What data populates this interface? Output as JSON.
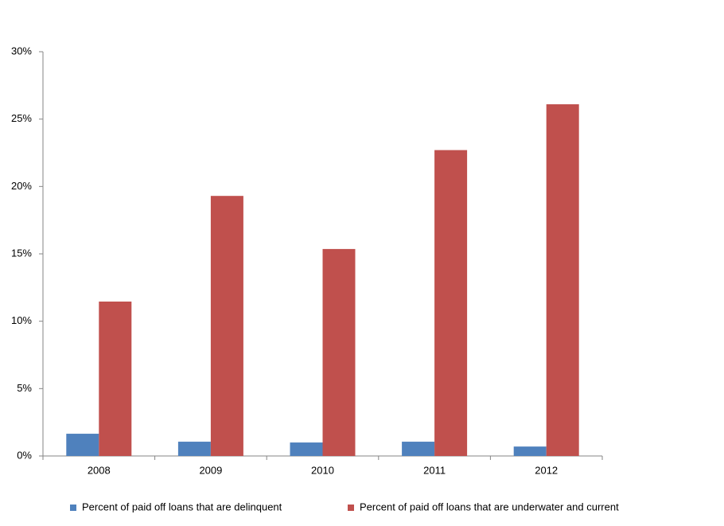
{
  "chart_data": {
    "type": "bar",
    "categories": [
      "2008",
      "2009",
      "2010",
      "2011",
      "2012"
    ],
    "series": [
      {
        "name": "Percent of paid off loans that are delinquent",
        "color": "#4f81bd",
        "values": [
          1.65,
          1.06,
          1.0,
          1.06,
          0.7
        ]
      },
      {
        "name": "Percent of paid off loans that are underwater and current",
        "color": "#c0504d",
        "values": [
          11.46,
          19.3,
          15.36,
          22.7,
          26.1
        ]
      }
    ],
    "ylim": [
      0,
      30
    ],
    "yticks": [
      {
        "value": 0,
        "label": "0%"
      },
      {
        "value": 5,
        "label": "5%"
      },
      {
        "value": 10,
        "label": "10%"
      },
      {
        "value": 15,
        "label": "15%"
      },
      {
        "value": 20,
        "label": "20%"
      },
      {
        "value": 25,
        "label": "25%"
      },
      {
        "value": 30,
        "label": "30%"
      }
    ],
    "grid": false,
    "legend": "bottom"
  }
}
